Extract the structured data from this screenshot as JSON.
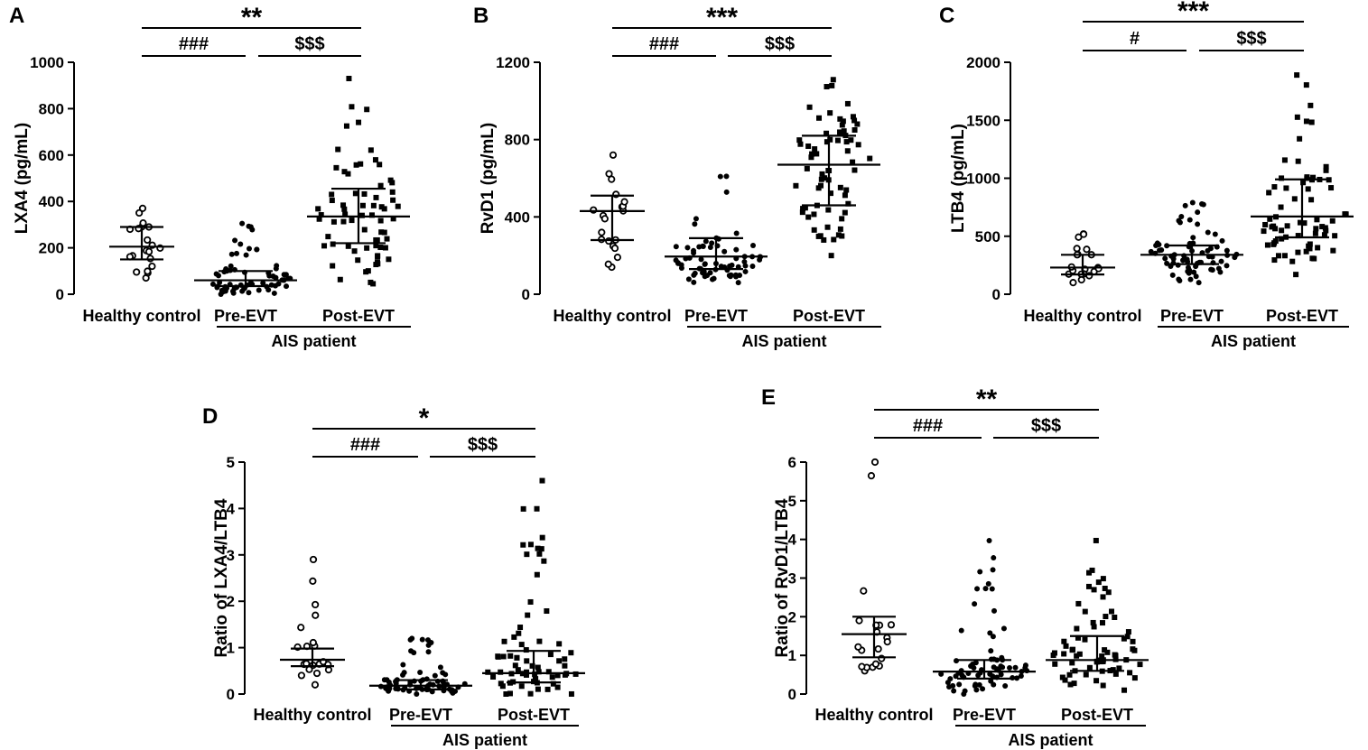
{
  "figure": {
    "group_label": "AIS patient",
    "categories": [
      "Healthy control",
      "Pre-EVT",
      "Post-EVT"
    ]
  },
  "chart_data": [
    {
      "panel": "A",
      "type": "scatter",
      "ylabel": "LXA4 (pg/mL)",
      "ylim": [
        0,
        1000
      ],
      "yticks": [
        0,
        200,
        400,
        600,
        800,
        1000
      ],
      "categories": [
        "Healthy control",
        "Pre-EVT",
        "Post-EVT"
      ],
      "group_label": "AIS patient",
      "series": [
        {
          "name": "Healthy control",
          "marker": "open-circle",
          "median": 205,
          "q1": 150,
          "q3": 290,
          "min": 70,
          "max": 370,
          "n": 20
        },
        {
          "name": "Pre-EVT",
          "marker": "filled-circle",
          "median": 60,
          "q1": 35,
          "q3": 100,
          "min": 0,
          "max": 305,
          "n": 70
        },
        {
          "name": "Post-EVT",
          "marker": "filled-square",
          "median": 335,
          "q1": 220,
          "q3": 455,
          "min": 45,
          "max": 930,
          "n": 70
        }
      ],
      "significance": [
        {
          "from": "Healthy control",
          "to": "Post-EVT",
          "label": "**"
        },
        {
          "from": "Healthy control",
          "to": "Pre-EVT",
          "label": "###"
        },
        {
          "from": "Pre-EVT",
          "to": "Post-EVT",
          "label": "$$$"
        }
      ]
    },
    {
      "panel": "B",
      "type": "scatter",
      "ylabel": "RvD1 (pg/mL)",
      "ylim": [
        0,
        1200
      ],
      "yticks": [
        0,
        400,
        800,
        1200
      ],
      "categories": [
        "Healthy control",
        "Pre-EVT",
        "Post-EVT"
      ],
      "group_label": "AIS patient",
      "series": [
        {
          "name": "Healthy control",
          "marker": "open-circle",
          "median": 430,
          "q1": 280,
          "q3": 510,
          "min": 140,
          "max": 720,
          "n": 20
        },
        {
          "name": "Pre-EVT",
          "marker": "filled-circle",
          "median": 195,
          "q1": 130,
          "q3": 290,
          "min": 60,
          "max": 610,
          "n": 70
        },
        {
          "name": "Post-EVT",
          "marker": "filled-square",
          "median": 670,
          "q1": 460,
          "q3": 820,
          "min": 200,
          "max": 1110,
          "n": 70
        }
      ],
      "significance": [
        {
          "from": "Healthy control",
          "to": "Post-EVT",
          "label": "***"
        },
        {
          "from": "Healthy control",
          "to": "Pre-EVT",
          "label": "###"
        },
        {
          "from": "Pre-EVT",
          "to": "Post-EVT",
          "label": "$$$"
        }
      ]
    },
    {
      "panel": "C",
      "type": "scatter",
      "ylabel": "LTB4 (pg/mL)",
      "ylim": [
        0,
        2000
      ],
      "yticks": [
        0,
        500,
        1000,
        1500,
        2000
      ],
      "categories": [
        "Healthy control",
        "Pre-EVT",
        "Post-EVT"
      ],
      "group_label": "AIS patient",
      "series": [
        {
          "name": "Healthy control",
          "marker": "open-circle",
          "median": 230,
          "q1": 170,
          "q3": 340,
          "min": 100,
          "max": 520,
          "n": 20
        },
        {
          "name": "Pre-EVT",
          "marker": "filled-circle",
          "median": 340,
          "q1": 260,
          "q3": 420,
          "min": 100,
          "max": 790,
          "n": 70
        },
        {
          "name": "Post-EVT",
          "marker": "filled-square",
          "median": 670,
          "q1": 490,
          "q3": 990,
          "min": 170,
          "max": 1890,
          "n": 70
        }
      ],
      "significance": [
        {
          "from": "Healthy control",
          "to": "Post-EVT",
          "label": "***"
        },
        {
          "from": "Healthy control",
          "to": "Pre-EVT",
          "label": "#"
        },
        {
          "from": "Pre-EVT",
          "to": "Post-EVT",
          "label": "$$$"
        }
      ]
    },
    {
      "panel": "D",
      "type": "scatter",
      "ylabel": "Ratio of LXA4/LTB4",
      "ylim": [
        0,
        5
      ],
      "yticks": [
        0,
        1,
        2,
        3,
        4,
        5
      ],
      "categories": [
        "Healthy control",
        "Pre-EVT",
        "Post-EVT"
      ],
      "group_label": "AIS patient",
      "series": [
        {
          "name": "Healthy control",
          "marker": "open-circle",
          "median": 0.74,
          "q1": 0.6,
          "q3": 0.98,
          "min": 0.2,
          "max": 2.9,
          "n": 20
        },
        {
          "name": "Pre-EVT",
          "marker": "filled-circle",
          "median": 0.18,
          "q1": 0.1,
          "q3": 0.3,
          "min": 0.0,
          "max": 1.2,
          "n": 70
        },
        {
          "name": "Post-EVT",
          "marker": "filled-square",
          "median": 0.45,
          "q1": 0.25,
          "q3": 0.93,
          "min": 0.0,
          "max": 4.6,
          "n": 70
        }
      ],
      "significance": [
        {
          "from": "Healthy control",
          "to": "Post-EVT",
          "label": "*"
        },
        {
          "from": "Healthy control",
          "to": "Pre-EVT",
          "label": "###"
        },
        {
          "from": "Pre-EVT",
          "to": "Post-EVT",
          "label": "$$$"
        }
      ]
    },
    {
      "panel": "E",
      "type": "scatter",
      "ylabel": "Ratio of RvD1/LTB4",
      "ylim": [
        0,
        6
      ],
      "yticks": [
        0,
        1,
        2,
        3,
        4,
        5,
        6
      ],
      "categories": [
        "Healthy control",
        "Pre-EVT",
        "Post-EVT"
      ],
      "group_label": "AIS patient",
      "series": [
        {
          "name": "Healthy control",
          "marker": "open-circle",
          "median": 1.55,
          "q1": 0.95,
          "q3": 2.0,
          "min": 0.6,
          "max": 6.0,
          "n": 20
        },
        {
          "name": "Pre-EVT",
          "marker": "filled-circle",
          "median": 0.58,
          "q1": 0.4,
          "q3": 0.88,
          "min": 0.0,
          "max": 3.97,
          "n": 70
        },
        {
          "name": "Post-EVT",
          "marker": "filled-square",
          "median": 0.88,
          "q1": 0.6,
          "q3": 1.5,
          "min": 0.1,
          "max": 3.97,
          "n": 70
        }
      ],
      "significance": [
        {
          "from": "Healthy control",
          "to": "Post-EVT",
          "label": "**"
        },
        {
          "from": "Healthy control",
          "to": "Pre-EVT",
          "label": "###"
        },
        {
          "from": "Pre-EVT",
          "to": "Post-EVT",
          "label": "$$$"
        }
      ]
    }
  ]
}
